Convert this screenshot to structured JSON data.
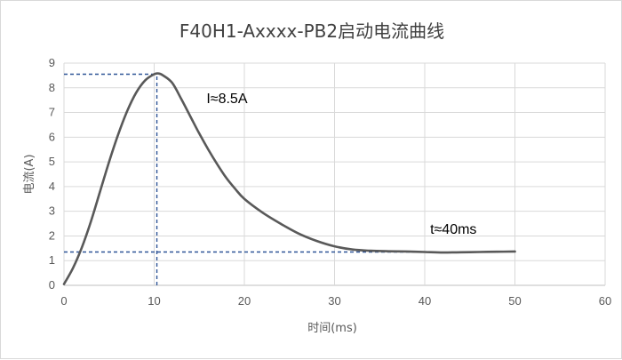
{
  "chart_data": {
    "type": "line",
    "title": "F40H1-Axxxx-PB2启动电流曲线",
    "xlabel": "时间(ms)",
    "ylabel": "电流(A)",
    "xlim": [
      0,
      60
    ],
    "ylim": [
      0,
      9
    ],
    "x_ticks": [
      "0",
      "10",
      "20",
      "30",
      "40",
      "50",
      "60"
    ],
    "y_ticks": [
      "0",
      "1",
      "2",
      "3",
      "4",
      "5",
      "6",
      "7",
      "8",
      "9"
    ],
    "grid": true,
    "legend": "none",
    "series": [
      {
        "color": "#595959",
        "x": [
          0,
          1,
          2,
          3,
          4,
          5,
          6,
          7,
          8,
          9,
          10,
          10.5,
          11,
          12,
          13,
          14,
          15,
          16,
          17,
          18,
          19,
          20,
          22,
          24,
          26,
          28,
          30,
          32,
          34,
          36,
          38,
          40,
          42,
          44,
          46,
          48,
          50
        ],
        "y": [
          0.05,
          0.7,
          1.55,
          2.6,
          3.8,
          5.0,
          6.1,
          7.05,
          7.8,
          8.3,
          8.55,
          8.58,
          8.5,
          8.2,
          7.55,
          6.85,
          6.15,
          5.5,
          4.9,
          4.35,
          3.9,
          3.5,
          2.95,
          2.5,
          2.1,
          1.8,
          1.58,
          1.45,
          1.4,
          1.38,
          1.37,
          1.35,
          1.33,
          1.34,
          1.35,
          1.36,
          1.37
        ]
      }
    ],
    "reference_lines": [
      {
        "axis": "y",
        "value": 8.55,
        "x_from": 0,
        "x_to": 10.3,
        "color": "#2f5597"
      },
      {
        "axis": "x",
        "value": 10.3,
        "y_from": 0,
        "y_to": 8.55,
        "color": "#2f5597"
      },
      {
        "axis": "y",
        "value": 1.35,
        "x_from": 0,
        "x_to": 41,
        "color": "#2f5597"
      }
    ],
    "annotations": [
      {
        "text": "I≈8.5A",
        "x": 15.8,
        "y": 7.6
      },
      {
        "text": "t≈40ms",
        "x": 40.6,
        "y": 2.3
      }
    ]
  }
}
